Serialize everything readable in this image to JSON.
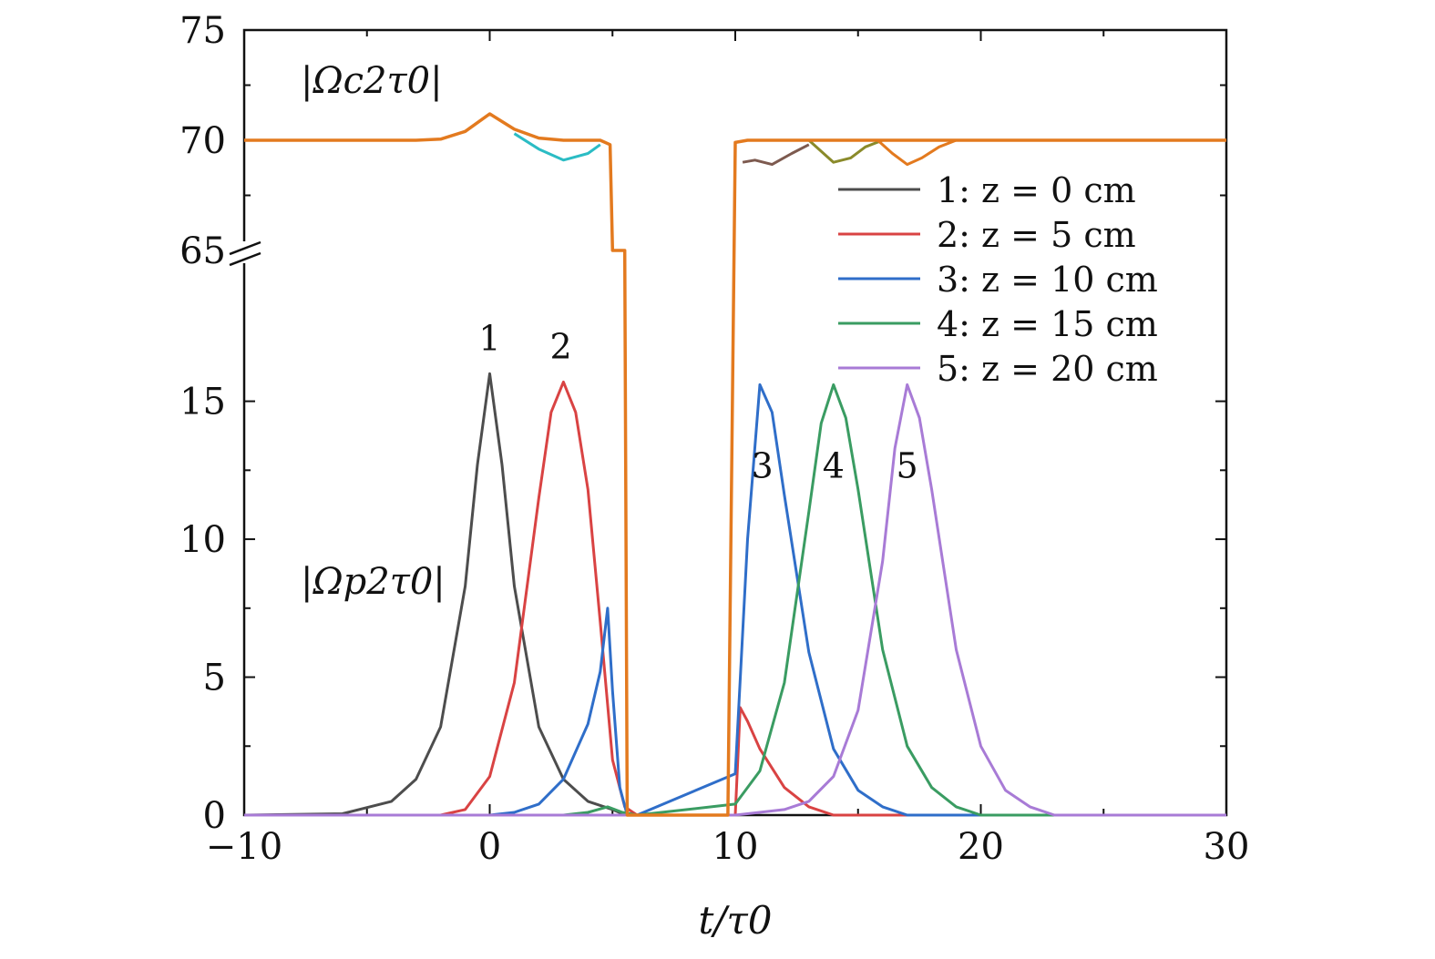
{
  "chart_data": {
    "type": "line",
    "xlabel": "t/τ0",
    "xlim": [
      -10,
      30
    ],
    "x_ticks": [
      "−10",
      "0",
      "10",
      "20",
      "30"
    ],
    "x_tick_values": [
      -10,
      0,
      10,
      20,
      30
    ],
    "lower_panel": {
      "ylim": [
        0,
        17
      ],
      "y_ticks": [
        "0",
        "5",
        "10",
        "15"
      ],
      "y_tick_values": [
        0,
        5,
        10,
        15
      ],
      "quantity_label": "|Ωp2τ0|"
    },
    "upper_panel": {
      "ylim": [
        65,
        75
      ],
      "y_ticks": [
        "65",
        "70",
        "75"
      ],
      "y_tick_values": [
        65,
        70,
        75
      ],
      "quantity_label": "|Ωc2τ0|"
    },
    "series": [
      {
        "name": "1: z = 0 cm",
        "color": "#4d4d4d",
        "probe_x": [
          -10,
          -6,
          -4,
          -3,
          -2,
          -1,
          -0.5,
          0,
          0.5,
          1,
          2,
          3,
          4,
          5,
          5.4,
          6,
          10
        ],
        "probe_y": [
          0,
          0.05,
          0.5,
          1.3,
          3.2,
          8.3,
          12.7,
          16.0,
          12.7,
          8.3,
          3.2,
          1.3,
          0.5,
          0.2,
          0.05,
          0,
          0
        ],
        "control_x": [
          -10,
          -3,
          -2,
          -1,
          0,
          1,
          2,
          3,
          4,
          4.5,
          4.9,
          5.0,
          5.3,
          5.5,
          5.6,
          6,
          9,
          9.4,
          9.7,
          10,
          10.5,
          30
        ],
        "control_y": [
          70,
          70,
          70.05,
          70.4,
          71.2,
          70.5,
          70.1,
          70.0,
          70.0,
          70.0,
          69.8,
          65.0,
          65.0,
          65.0,
          0,
          0,
          0,
          0,
          0,
          69.9,
          70.0,
          70.0
        ]
      },
      {
        "name": "2: z = 5 cm",
        "color": "#d94343",
        "probe_x": [
          -10,
          -2,
          -1,
          0,
          1,
          2,
          2.5,
          3,
          3.5,
          4,
          4.5,
          5,
          5.5,
          6,
          10,
          10.2,
          10.5,
          11,
          12,
          13,
          14,
          30
        ],
        "probe_y": [
          0,
          0,
          0.2,
          1.4,
          4.8,
          11.5,
          14.6,
          15.7,
          14.6,
          11.8,
          7.0,
          2.0,
          0.3,
          0,
          0,
          3.9,
          3.4,
          2.4,
          1.0,
          0.3,
          0,
          0
        ],
        "control_x": [
          -10,
          30
        ],
        "control_y": [
          70,
          70
        ]
      },
      {
        "name": "3: z = 10 cm",
        "color": "#2f6ec9",
        "probe_x": [
          -10,
          0,
          1,
          2,
          3,
          4,
          4.5,
          4.8,
          5.0,
          5.3,
          5.6,
          6,
          10,
          10.5,
          11,
          11.5,
          12,
          13,
          14,
          15,
          16,
          17,
          30
        ],
        "probe_y": [
          0,
          0,
          0.1,
          0.4,
          1.3,
          3.3,
          5.2,
          7.5,
          4.5,
          1.0,
          0,
          0,
          1.5,
          10.0,
          15.6,
          14.6,
          11.6,
          5.9,
          2.4,
          0.9,
          0.3,
          0,
          0
        ],
        "control_x": [
          -10,
          30
        ],
        "control_y": [
          70,
          70
        ]
      },
      {
        "name": "4: z = 15 cm",
        "color": "#3a9c62",
        "probe_x": [
          -10,
          3,
          4,
          4.8,
          5.4,
          6,
          10,
          11,
          12,
          13,
          13.5,
          14,
          14.5,
          15,
          16,
          17,
          18,
          19,
          20,
          30
        ],
        "probe_y": [
          0,
          0,
          0.1,
          0.3,
          0.1,
          0,
          0.4,
          1.6,
          4.8,
          11.0,
          14.2,
          15.6,
          14.4,
          11.8,
          6.0,
          2.5,
          1.0,
          0.3,
          0,
          0
        ],
        "control_x": [
          -10,
          30
        ],
        "control_y": [
          70,
          70
        ]
      },
      {
        "name": "5: z = 20 cm",
        "color": "#a87bd6",
        "probe_x": [
          -10,
          10,
          12,
          13,
          14,
          15,
          16,
          16.5,
          17,
          17.5,
          18,
          19,
          20,
          21,
          22,
          23,
          30
        ],
        "probe_y": [
          0,
          0,
          0.2,
          0.5,
          1.4,
          3.8,
          9.2,
          13.3,
          15.6,
          14.4,
          11.8,
          6.0,
          2.5,
          0.9,
          0.3,
          0,
          0
        ],
        "control_x": [
          -10,
          30
        ],
        "control_y": [
          70,
          70
        ]
      }
    ],
    "control_dips": [
      {
        "color": "#2bbcc4",
        "x": [
          1,
          2,
          3,
          4,
          4.5
        ],
        "y": [
          70.3,
          69.6,
          69.1,
          69.4,
          69.8
        ]
      },
      {
        "color": "#7d5a4f",
        "x": [
          10.3,
          10.8,
          11.5,
          12.3,
          13
        ],
        "y": [
          69.0,
          69.1,
          68.9,
          69.4,
          69.8
        ]
      },
      {
        "color": "#8a8a2a",
        "x": [
          13,
          13.5,
          14,
          14.7,
          15.3,
          16
        ],
        "y": [
          70.0,
          69.5,
          69.0,
          69.2,
          69.7,
          70.0
        ]
      },
      {
        "color": "#e37a1f",
        "x": [
          15.8,
          16.4,
          17,
          17.6,
          18.3,
          19
        ],
        "y": [
          70.0,
          69.4,
          68.9,
          69.2,
          69.7,
          70.0
        ]
      }
    ],
    "peak_labels": [
      {
        "text": "1",
        "x": 0,
        "y": 16.0
      },
      {
        "text": "2",
        "x": 2.9,
        "y": 15.7
      },
      {
        "text": "3",
        "x": 11.1,
        "y": 15.6
      },
      {
        "text": "4",
        "x": 14.0,
        "y": 15.6
      },
      {
        "text": "5",
        "x": 17.0,
        "y": 15.6
      }
    ],
    "legend_position": "top-right",
    "grid": false
  }
}
